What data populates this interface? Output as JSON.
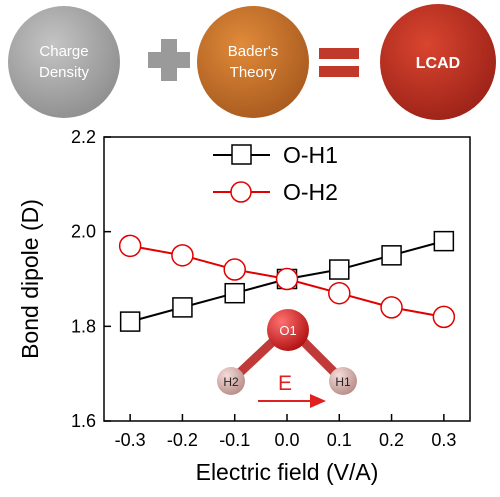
{
  "header": {
    "circle1_lines": [
      "Charge",
      "Density"
    ],
    "plus_symbol": "+",
    "circle2_lines": [
      "Bader's",
      "Theory"
    ],
    "equals_symbol": "=",
    "circle3_label": "LCAD",
    "colors": {
      "circle1": "#a6a6a6",
      "circle2": "#c9742a",
      "circle3": "#c0392b",
      "operators": "#9a9a9a",
      "equals": "#c0392b"
    }
  },
  "chart_data": {
    "type": "line",
    "xlabel": "Electric field (V/A)",
    "ylabel": "Bond dipole (D)",
    "xlim": [
      -0.35,
      0.35
    ],
    "ylim": [
      1.6,
      2.2
    ],
    "xticks": [
      "-0.3",
      "-0.2",
      "-0.1",
      "0.0",
      "0.1",
      "0.2",
      "0.3"
    ],
    "yticks": [
      "1.6",
      "1.8",
      "2.0",
      "2.2"
    ],
    "x": [
      -0.3,
      -0.2,
      -0.1,
      0.0,
      0.1,
      0.2,
      0.3
    ],
    "series": [
      {
        "name": "O-H1",
        "marker": "square",
        "color": "#000000",
        "values": [
          1.81,
          1.84,
          1.87,
          1.9,
          1.92,
          1.95,
          1.98
        ]
      },
      {
        "name": "O-H2",
        "marker": "circle",
        "color": "#e00000",
        "values": [
          1.97,
          1.95,
          1.92,
          1.9,
          1.87,
          1.84,
          1.82
        ]
      }
    ],
    "legend_position": "top-right",
    "inset": {
      "atom_o": "O1",
      "atom_h1": "H1",
      "atom_h2": "H2",
      "field_label": "E",
      "colors": {
        "oxygen": "#d42020",
        "hydrogen": "#dcb0ac",
        "arrow": "#e02020"
      }
    }
  }
}
